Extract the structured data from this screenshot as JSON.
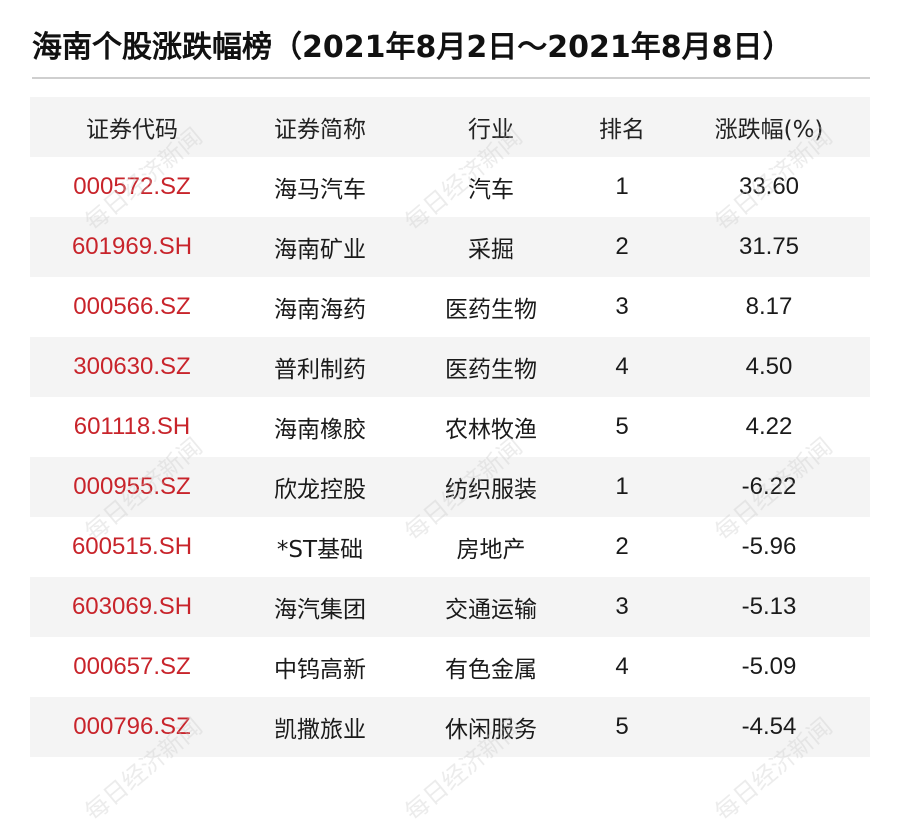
{
  "title": "海南个股涨跌幅榜（2021年8月2日～2021年8月8日）",
  "headers": [
    "证券代码",
    "证券简称",
    "行业",
    "排名",
    "涨跌幅(%)"
  ],
  "rows": [
    {
      "code": "000572.SZ",
      "name": "海马汽车",
      "industry": "汽车",
      "rank": "1",
      "change": "33.60"
    },
    {
      "code": "601969.SH",
      "name": "海南矿业",
      "industry": "采掘",
      "rank": "2",
      "change": "31.75"
    },
    {
      "code": "000566.SZ",
      "name": "海南海药",
      "industry": "医药生物",
      "rank": "3",
      "change": "8.17"
    },
    {
      "code": "300630.SZ",
      "name": "普利制药",
      "industry": "医药生物",
      "rank": "4",
      "change": "4.50"
    },
    {
      "code": "601118.SH",
      "name": "海南橡胶",
      "industry": "农林牧渔",
      "rank": "5",
      "change": "4.22"
    },
    {
      "code": "000955.SZ",
      "name": "欣龙控股",
      "industry": "纺织服装",
      "rank": "1",
      "change": "-6.22"
    },
    {
      "code": "600515.SH",
      "name": "*ST基础",
      "industry": "房地产",
      "rank": "2",
      "change": "-5.96"
    },
    {
      "code": "603069.SH",
      "name": "海汽集团",
      "industry": "交通运输",
      "rank": "3",
      "change": "-5.13"
    },
    {
      "code": "000657.SZ",
      "name": "中钨高新",
      "industry": "有色金属",
      "rank": "4",
      "change": "-5.09"
    },
    {
      "code": "000796.SZ",
      "name": "凯撒旅业",
      "industry": "休闲服务",
      "rank": "5",
      "change": "-4.54"
    }
  ],
  "watermark_text": "每日经济新闻",
  "colors": {
    "code_text": "#c8242b",
    "stripe": "#f4f4f4",
    "rule": "#cfcfcf"
  }
}
